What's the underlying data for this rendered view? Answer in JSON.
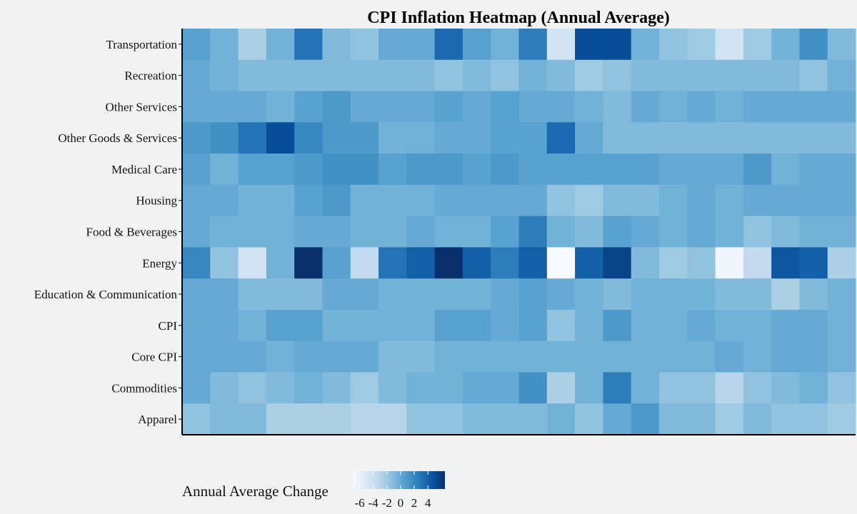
{
  "chart_data": {
    "type": "heatmap",
    "title": "CPI Inflation Heatmap (Annual Average)",
    "xlabel": "",
    "ylabel": "",
    "rows": [
      "Transportation",
      "Recreation",
      "Other Services",
      "Other Goods & Services",
      "Medical Care",
      "Housing",
      "Food & Beverages",
      "Energy",
      "Education & Communication",
      "CPI",
      "Core CPI",
      "Commodities",
      "Apparel"
    ],
    "n_columns": 24,
    "values": [
      [
        0.5,
        -0.5,
        -2.5,
        -0.5,
        3,
        -1,
        -1.5,
        0,
        0,
        3.5,
        0.5,
        -0.5,
        2.5,
        -4.5,
        5,
        5,
        -0.5,
        -1.5,
        -2,
        -4.5,
        -2,
        -0.5,
        1.5,
        -1
      ],
      [
        0,
        -0.5,
        -1,
        -1,
        -1,
        -1,
        -1,
        -1,
        -1,
        -1.5,
        -1,
        -1.5,
        -0.5,
        -1,
        -2,
        -1.5,
        -1,
        -1,
        -1,
        -1,
        -1,
        -1,
        -1.5,
        -0.5
      ],
      [
        0,
        0,
        0,
        -0.5,
        0.5,
        1,
        0,
        0,
        0,
        0.5,
        0,
        0.5,
        0,
        0,
        -0.5,
        -1,
        0,
        -0.5,
        0,
        -0.5,
        0,
        0,
        0,
        0
      ],
      [
        1,
        1.5,
        3,
        5,
        2,
        1,
        1,
        -0.5,
        -0.5,
        0,
        0,
        0.5,
        0.5,
        3.5,
        0,
        -1,
        -1,
        -1,
        -1,
        -1,
        -1,
        -1,
        -1,
        -1
      ],
      [
        0.5,
        -0.5,
        0.5,
        0.5,
        1,
        1.5,
        1.5,
        0.5,
        1,
        1,
        0.5,
        1,
        0.5,
        0.5,
        0.5,
        0.5,
        0.5,
        0,
        0,
        0,
        1,
        -0.5,
        0,
        0
      ],
      [
        0,
        0,
        -0.5,
        -0.5,
        0.5,
        1,
        -0.5,
        -0.5,
        -0.5,
        0,
        0,
        0,
        0,
        -1.5,
        -2,
        -1,
        -1,
        -0.5,
        0,
        -0.5,
        0,
        0,
        0,
        0
      ],
      [
        0,
        -0.5,
        -0.5,
        -0.5,
        0,
        0,
        -0.5,
        -0.5,
        0,
        -0.5,
        -0.5,
        0.5,
        2.5,
        -0.5,
        -1,
        0.5,
        0,
        -0.5,
        0,
        -0.5,
        -1.5,
        -1,
        -0.5,
        -0.5
      ],
      [
        2,
        -1.5,
        -4.5,
        -0.5,
        6.5,
        0.5,
        -3.5,
        3,
        4,
        6.5,
        4,
        2.5,
        4,
        -7,
        4,
        5.5,
        -1,
        -2,
        -1.5,
        -6.5,
        -3.5,
        4.5,
        4,
        -2.5
      ],
      [
        0,
        0,
        -1,
        -1,
        -1,
        0,
        0,
        -0.5,
        -0.5,
        -0.5,
        -0.5,
        0,
        0.5,
        0,
        -0.5,
        -1,
        -0.5,
        -0.5,
        -0.5,
        -1,
        -1,
        -2.5,
        -1,
        -0.5
      ],
      [
        0,
        0,
        -0.5,
        0.5,
        0.5,
        -0.5,
        -0.5,
        -0.5,
        -0.5,
        0.5,
        0.5,
        0,
        0.5,
        -1.5,
        -0.5,
        1,
        -0.5,
        -0.5,
        0,
        -0.5,
        -0.5,
        0,
        0,
        -0.5
      ],
      [
        0,
        0,
        0,
        -0.5,
        0,
        0,
        0,
        -1,
        -1,
        -0.5,
        -0.5,
        -0.5,
        -0.5,
        -0.5,
        -0.5,
        -0.5,
        -0.5,
        -0.5,
        -0.5,
        0,
        -0.5,
        0,
        0,
        -0.5
      ],
      [
        0,
        -1,
        -1.5,
        -1,
        -0.5,
        -1,
        -2,
        -1,
        -0.5,
        -0.5,
        0,
        0,
        1.5,
        -2.5,
        -0.5,
        2.5,
        -0.5,
        -1.5,
        -1.5,
        -3,
        -1.5,
        -1,
        -0.5,
        -1.5
      ],
      [
        -1.5,
        -1,
        -1,
        -2.5,
        -2.5,
        -2.5,
        -3,
        -3,
        -1.5,
        -1.5,
        -1,
        -1,
        -1,
        -0.5,
        -1.5,
        0,
        1,
        -1,
        -1,
        -2,
        -1,
        -1.5,
        -1.5,
        -2
      ]
    ],
    "colorbar": {
      "label": "Annual Average Change",
      "ticks": [
        -6,
        -4,
        -2,
        0,
        2,
        4
      ],
      "range": [
        -7,
        6.5
      ],
      "colors": [
        "#f7fbff",
        "#deebf7",
        "#c6dbef",
        "#9ecae1",
        "#6baed6",
        "#4292c6",
        "#2171b5",
        "#08519c",
        "#08306b"
      ]
    },
    "grid": false,
    "legend_position": "bottom-left"
  }
}
